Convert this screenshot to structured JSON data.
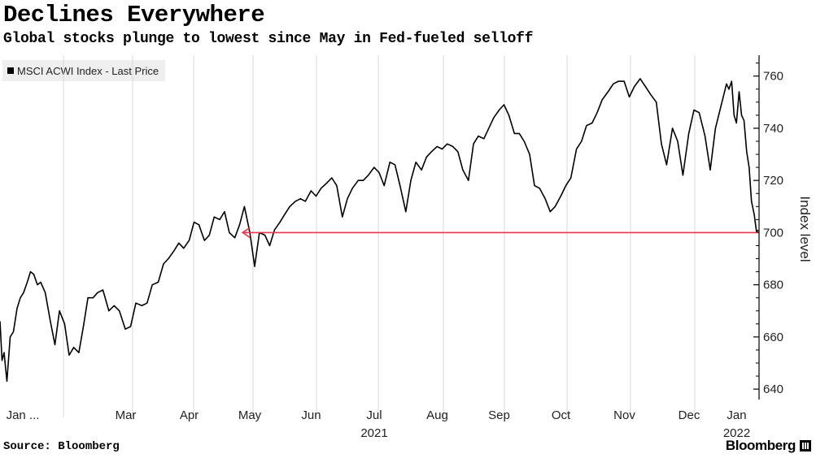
{
  "header": {
    "title": "Declines Everywhere",
    "subtitle": "Global stocks plunge to lowest since May in Fed-fueled selloff"
  },
  "footer": {
    "source": "Source: Bloomberg",
    "brand": "Bloomberg"
  },
  "colors": {
    "line": "#000000",
    "arrow": "#e8374f",
    "grid": "#d8d8d8",
    "legend_bg": "#efefef"
  },
  "chart_data": {
    "type": "line",
    "title": "Declines Everywhere",
    "subtitle": "Global stocks plunge to lowest since May in Fed-fueled selloff",
    "ylabel": "Index level",
    "ylim": [
      636,
      768
    ],
    "yticks": [
      640,
      660,
      680,
      700,
      720,
      740,
      760
    ],
    "y_axis_side": "right",
    "grid": "vertical month separators",
    "legend_position": "top-left",
    "xlabels": [
      {
        "label": "Jan ...",
        "month": 0
      },
      {
        "label": "Mar",
        "month": 2
      },
      {
        "label": "Apr",
        "month": 3
      },
      {
        "label": "May",
        "month": 4
      },
      {
        "label": "Jun",
        "month": 5
      },
      {
        "label": "Jul",
        "month": 6
      },
      {
        "label": "Aug",
        "month": 7
      },
      {
        "label": "Sep",
        "month": 8
      },
      {
        "label": "Oct",
        "month": 9
      },
      {
        "label": "Nov",
        "month": 10
      },
      {
        "label": "Dec",
        "month": 11
      },
      {
        "label": "Jan",
        "month": 12
      }
    ],
    "year_labels": [
      {
        "label": "2021",
        "month": 6
      },
      {
        "label": "2022",
        "month": 12
      }
    ],
    "series": [
      {
        "name": "MSCI ACWI Index - Last Price",
        "color": "#000000",
        "points": [
          [
            0.0,
            666
          ],
          [
            0.05,
            651
          ],
          [
            0.1,
            654
          ],
          [
            0.17,
            643
          ],
          [
            0.25,
            660
          ],
          [
            0.33,
            662
          ],
          [
            0.42,
            671
          ],
          [
            0.5,
            675
          ],
          [
            0.58,
            677
          ],
          [
            0.67,
            681
          ],
          [
            0.75,
            685
          ],
          [
            0.83,
            684
          ],
          [
            0.92,
            680
          ],
          [
            1.0,
            681
          ],
          [
            1.08,
            677
          ],
          [
            1.17,
            666
          ],
          [
            1.25,
            657
          ],
          [
            1.33,
            670
          ],
          [
            1.42,
            665
          ],
          [
            1.5,
            653
          ],
          [
            1.58,
            656
          ],
          [
            1.67,
            654
          ],
          [
            1.75,
            664
          ],
          [
            1.83,
            675
          ],
          [
            1.92,
            675
          ],
          [
            2.0,
            677
          ],
          [
            2.08,
            678
          ],
          [
            2.17,
            670
          ],
          [
            2.25,
            672
          ],
          [
            2.33,
            670
          ],
          [
            2.42,
            663
          ],
          [
            2.5,
            664
          ],
          [
            2.58,
            673
          ],
          [
            2.67,
            672
          ],
          [
            2.75,
            673
          ],
          [
            2.83,
            680
          ],
          [
            2.92,
            681
          ],
          [
            3.0,
            688
          ],
          [
            3.08,
            690
          ],
          [
            3.17,
            693
          ],
          [
            3.25,
            696
          ],
          [
            3.33,
            694
          ],
          [
            3.42,
            697
          ],
          [
            3.5,
            704
          ],
          [
            3.58,
            703
          ],
          [
            3.67,
            697
          ],
          [
            3.75,
            699
          ],
          [
            3.83,
            706
          ],
          [
            3.92,
            705
          ],
          [
            4.0,
            708
          ],
          [
            4.08,
            700
          ],
          [
            4.17,
            698
          ],
          [
            4.25,
            703
          ],
          [
            4.33,
            710
          ],
          [
            4.42,
            700
          ],
          [
            4.5,
            687
          ],
          [
            4.58,
            700
          ],
          [
            4.67,
            699
          ],
          [
            4.75,
            695
          ],
          [
            4.83,
            701
          ],
          [
            4.92,
            704
          ],
          [
            5.0,
            707
          ],
          [
            5.08,
            710
          ],
          [
            5.17,
            712
          ],
          [
            5.25,
            713
          ],
          [
            5.33,
            712
          ],
          [
            5.42,
            716
          ],
          [
            5.5,
            714
          ],
          [
            5.58,
            717
          ],
          [
            5.67,
            719
          ],
          [
            5.75,
            721
          ],
          [
            5.83,
            718
          ],
          [
            5.92,
            706
          ],
          [
            6.0,
            713
          ],
          [
            6.08,
            717
          ],
          [
            6.17,
            720
          ],
          [
            6.25,
            720
          ],
          [
            6.33,
            722
          ],
          [
            6.42,
            725
          ],
          [
            6.5,
            723
          ],
          [
            6.58,
            718
          ],
          [
            6.67,
            727
          ],
          [
            6.75,
            726
          ],
          [
            6.83,
            718
          ],
          [
            6.92,
            708
          ],
          [
            7.0,
            720
          ],
          [
            7.08,
            727
          ],
          [
            7.17,
            724
          ],
          [
            7.25,
            729
          ],
          [
            7.33,
            731
          ],
          [
            7.42,
            733
          ],
          [
            7.5,
            732
          ],
          [
            7.58,
            734
          ],
          [
            7.67,
            733
          ],
          [
            7.75,
            731
          ],
          [
            7.83,
            724
          ],
          [
            7.92,
            720
          ],
          [
            8.0,
            734
          ],
          [
            8.08,
            737
          ],
          [
            8.17,
            736
          ],
          [
            8.25,
            740
          ],
          [
            8.33,
            744
          ],
          [
            8.42,
            747
          ],
          [
            8.5,
            749
          ],
          [
            8.58,
            745
          ],
          [
            8.67,
            738
          ],
          [
            8.75,
            738
          ],
          [
            8.83,
            735
          ],
          [
            8.92,
            730
          ],
          [
            9.0,
            718
          ],
          [
            9.08,
            717
          ],
          [
            9.17,
            713
          ],
          [
            9.25,
            708
          ],
          [
            9.33,
            710
          ],
          [
            9.42,
            714
          ],
          [
            9.5,
            718
          ],
          [
            9.58,
            721
          ],
          [
            9.67,
            732
          ],
          [
            9.75,
            735
          ],
          [
            9.83,
            741
          ],
          [
            9.92,
            742
          ],
          [
            10.0,
            746
          ],
          [
            10.08,
            751
          ],
          [
            10.17,
            754
          ],
          [
            10.25,
            757
          ],
          [
            10.33,
            758
          ],
          [
            10.42,
            758
          ],
          [
            10.5,
            752
          ],
          [
            10.58,
            756
          ],
          [
            10.67,
            759
          ],
          [
            10.75,
            756
          ],
          [
            10.83,
            753
          ],
          [
            10.92,
            750
          ],
          [
            11.0,
            734
          ],
          [
            11.08,
            726
          ],
          [
            11.17,
            740
          ],
          [
            11.25,
            735
          ],
          [
            11.33,
            722
          ],
          [
            11.42,
            738
          ],
          [
            11.5,
            747
          ],
          [
            11.58,
            746
          ],
          [
            11.67,
            737
          ],
          [
            11.75,
            724
          ],
          [
            11.83,
            740
          ],
          [
            11.92,
            749
          ],
          [
            12.0,
            757
          ],
          [
            12.08,
            755
          ],
          [
            12.17,
            758
          ],
          [
            12.25,
            745
          ],
          [
            12.33,
            742
          ],
          [
            12.42,
            754
          ],
          [
            12.5,
            745
          ],
          [
            12.58,
            743
          ],
          [
            12.67,
            731
          ],
          [
            12.75,
            725
          ],
          [
            12.83,
            712
          ],
          [
            12.92,
            707
          ],
          [
            13.0,
            700
          ],
          [
            13.05,
            701
          ]
        ]
      }
    ],
    "annotations": [
      {
        "type": "arrow",
        "from_month": 13.0,
        "to_month": 4.3,
        "y": 700,
        "color": "#e8374f"
      }
    ]
  }
}
